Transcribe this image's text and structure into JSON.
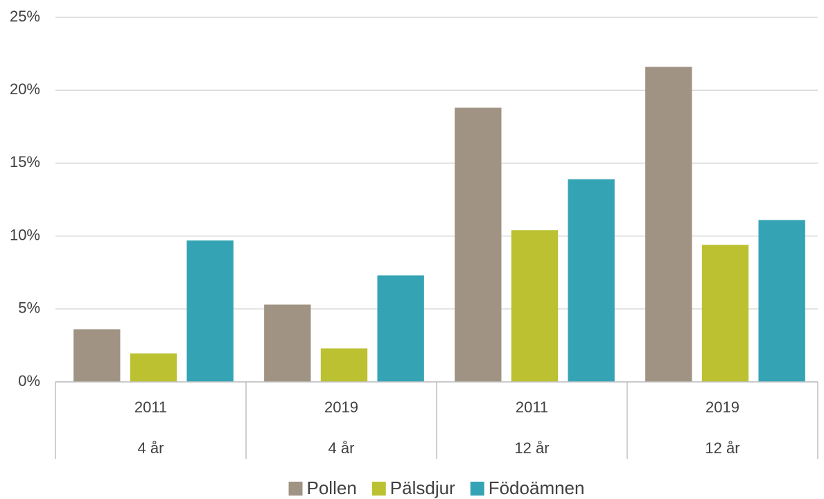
{
  "chart_data": {
    "type": "bar",
    "categories": [
      "2011",
      "2019",
      "2011",
      "2019"
    ],
    "category_groups": [
      "4 år",
      "4 år",
      "12 år",
      "12 år"
    ],
    "series": [
      {
        "name": "Pollen",
        "color": "#a09383",
        "values": [
          3.6,
          5.3,
          18.8,
          21.6
        ]
      },
      {
        "name": "Pälsdjur",
        "color": "#bcc132",
        "values": [
          1.95,
          2.3,
          10.4,
          9.4
        ]
      },
      {
        "name": "Födoämnen",
        "color": "#34a4b5",
        "values": [
          9.7,
          7.3,
          13.9,
          11.1
        ]
      }
    ],
    "ylim": [
      0,
      25
    ],
    "yticks": [
      {
        "value": 0,
        "label": "0%"
      },
      {
        "value": 5,
        "label": "5%"
      },
      {
        "value": 10,
        "label": "10%"
      },
      {
        "value": 15,
        "label": "15%"
      },
      {
        "value": 20,
        "label": "20%"
      },
      {
        "value": 25,
        "label": "25%"
      }
    ],
    "grid": true,
    "legend": "bottom"
  }
}
